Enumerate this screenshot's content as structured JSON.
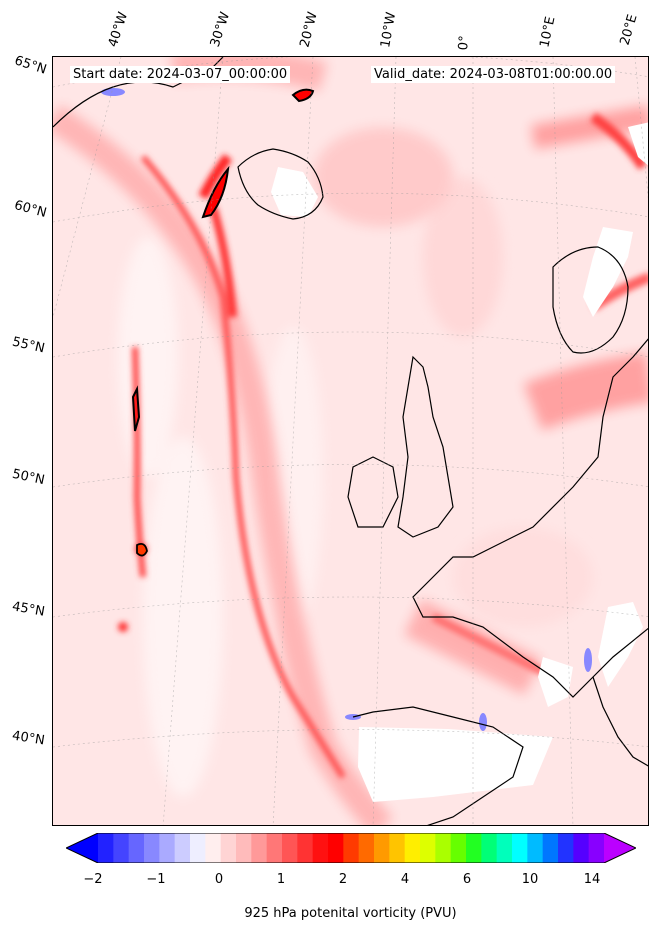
{
  "header": {
    "start_date": "Start date: 2024-03-07_00:00:00",
    "valid_date": "Valid_date: 2024-03-08T01:00:00.00"
  },
  "longitude_labels": [
    "40°W",
    "30°W",
    "20°W",
    "10°W",
    "0°",
    "10°E",
    "20°E"
  ],
  "latitude_labels": [
    "65°N",
    "60°N",
    "55°N",
    "50°N",
    "45°N",
    "40°N"
  ],
  "colorbar": {
    "title": "925 hPa potenital vorticity (PVU)",
    "tick_labels": [
      "−2",
      "−1",
      "0",
      "1",
      "2",
      "4",
      "6",
      "10",
      "14"
    ],
    "colors": [
      "#0000ff",
      "#2222ff",
      "#4444ff",
      "#6666ff",
      "#8888ff",
      "#aaaaff",
      "#ccccff",
      "#eeeeff",
      "#ffeeee",
      "#ffd4d4",
      "#ffbbbb",
      "#ff9999",
      "#ff7777",
      "#ff5555",
      "#ff3333",
      "#ff1111",
      "#ff0000",
      "#ff3a00",
      "#ff6a00",
      "#ff9a00",
      "#ffc400",
      "#ffee00",
      "#ddff00",
      "#aaff00",
      "#66ff00",
      "#22ff22",
      "#00ff77",
      "#00ffbb",
      "#00ffff",
      "#00bbff",
      "#0077ff",
      "#2233ff",
      "#5500ff",
      "#8800ff",
      "#bb00ff"
    ]
  }
}
